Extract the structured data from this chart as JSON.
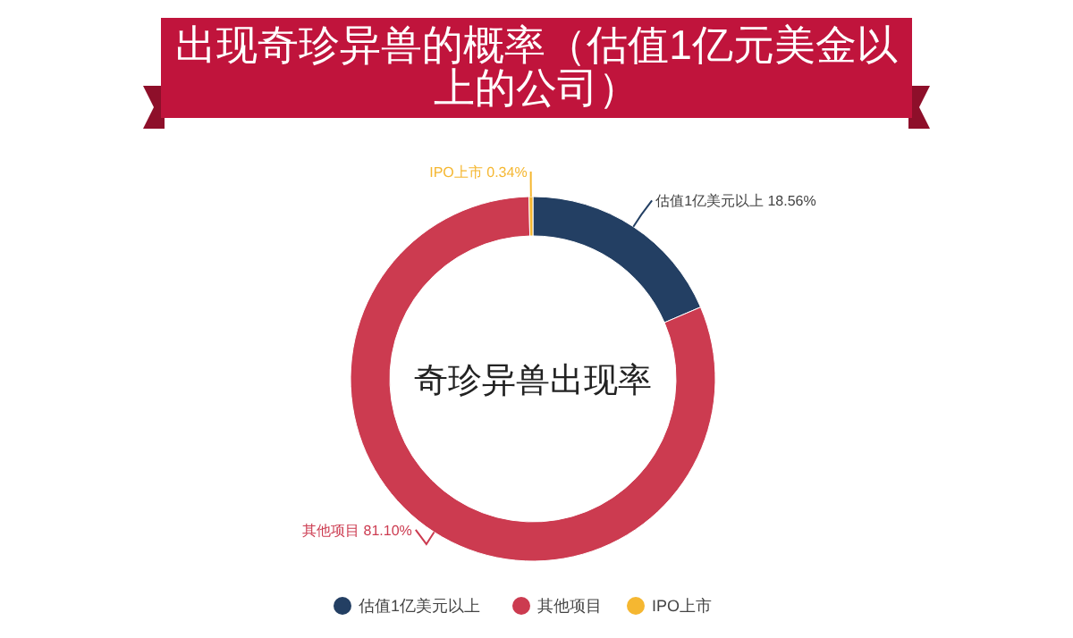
{
  "chart_data": {
    "type": "donut",
    "title": "出现奇珍异兽的概率（估值1亿元美金以上的公司）",
    "categories": [
      "估值1亿美元以上",
      "其他项目",
      "IPO上市"
    ],
    "values": [
      18.56,
      81.1,
      0.34
    ],
    "colors": [
      "#233f63",
      "#cc3b50",
      "#f5b731"
    ],
    "value_labels": [
      "18.56%",
      "81.10%",
      "0.34%"
    ],
    "annotations": [
      "奇珍异兽出现率"
    ],
    "legend": "bottom"
  }
}
